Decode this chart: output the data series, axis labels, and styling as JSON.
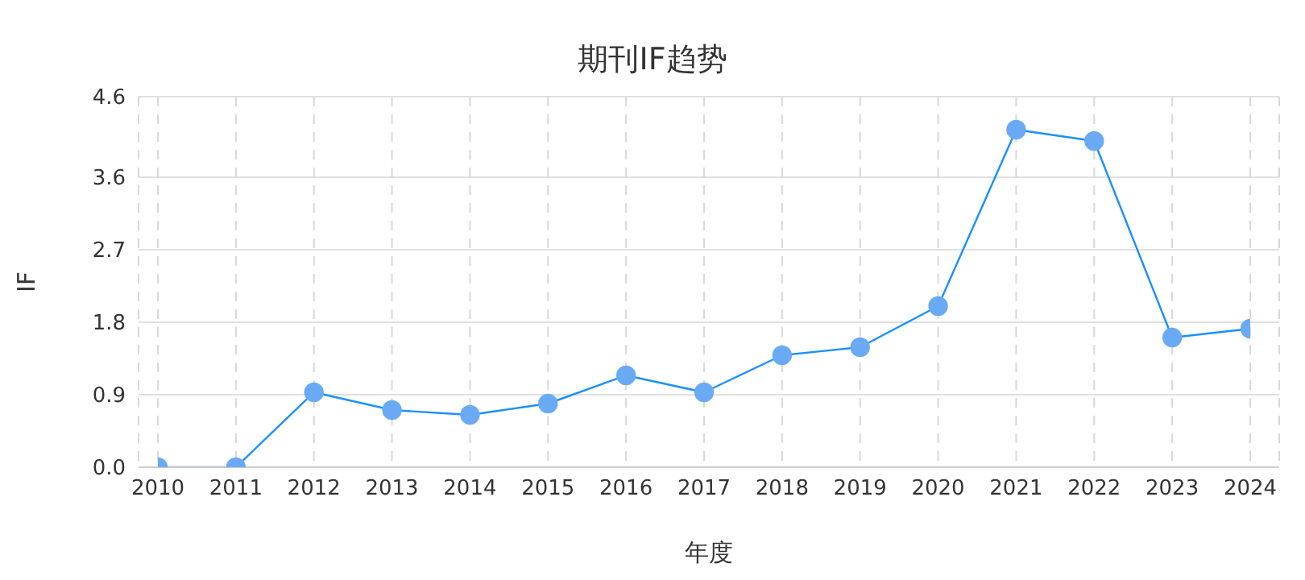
{
  "chart_data": {
    "type": "line",
    "title": "期刊IF趋势",
    "xlabel": "年度",
    "ylabel": "IF",
    "categories": [
      "2010",
      "2011",
      "2012",
      "2013",
      "2014",
      "2015",
      "2016",
      "2017",
      "2018",
      "2019",
      "2020",
      "2021",
      "2022",
      "2023",
      "2024"
    ],
    "series": [
      {
        "color": "#1890ff",
        "values": [
          0,
          0,
          0.93,
          0.71,
          0.65,
          0.79,
          1.14,
          0.93,
          1.39,
          1.49,
          2.0,
          4.19,
          4.05,
          1.61,
          1.72
        ]
      }
    ],
    "ylim": [
      0,
      4.6
    ],
    "yticks": [
      {
        "value": 0,
        "label": "0.0"
      },
      0.9,
      1.8,
      2.7,
      3.6,
      4.6
    ],
    "grid": true,
    "marker": "circle",
    "line_style": "solid"
  }
}
